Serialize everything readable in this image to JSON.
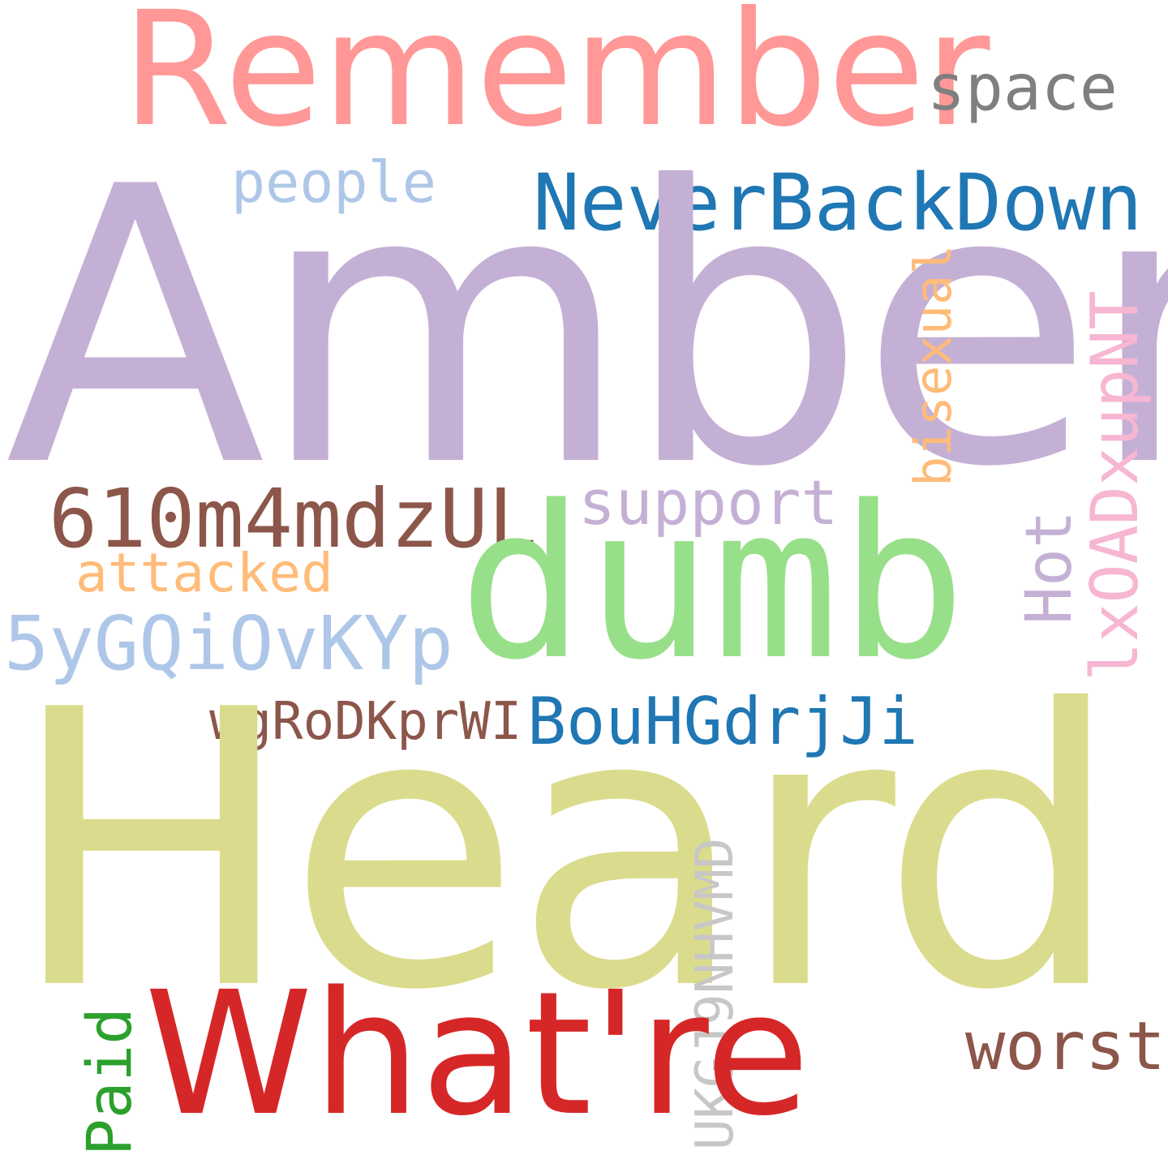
{
  "words": {
    "remember": {
      "text": "Remember",
      "color": "#ff9896"
    },
    "space": {
      "text": "space",
      "color": "#7f7f7f"
    },
    "people": {
      "text": "people",
      "color": "#aec7e8"
    },
    "neverbackdown": {
      "text": "NeverBackDown",
      "color": "#1f77b4"
    },
    "amber": {
      "text": "Amber",
      "color": "#c5b0d5"
    },
    "bisexual": {
      "text": "bisexual",
      "color": "#ffbb78"
    },
    "lxoadxupnt": {
      "text": "lxOADxupNT",
      "color": "#f7b6d2"
    },
    "code610": {
      "text": "610m4mdzUL",
      "color": "#8c564b"
    },
    "support": {
      "text": "support",
      "color": "#c5b0d5"
    },
    "hot": {
      "text": "Hot",
      "color": "#c5b0d5"
    },
    "dumb": {
      "text": "dumb",
      "color": "#98df8a"
    },
    "attacked": {
      "text": "attacked",
      "color": "#ffbb78"
    },
    "code5y": {
      "text": "5yGQiOvKYp",
      "color": "#aec7e8"
    },
    "wgrodkprwi": {
      "text": "wgRoDKprWI",
      "color": "#8c564b"
    },
    "bouhgdrjji": {
      "text": "BouHGdrjJi",
      "color": "#1f77b4"
    },
    "heard": {
      "text": "Heard",
      "color": "#dbdb8d"
    },
    "ukgj9nhvmd": {
      "text": "UKGJ9NHVMD",
      "color": "#c7c7c7"
    },
    "paid": {
      "text": "Paid",
      "color": "#2ca02c"
    },
    "whatre": {
      "text": "What're",
      "color": "#d62728"
    },
    "worst": {
      "text": "worst",
      "color": "#8c564b"
    }
  }
}
